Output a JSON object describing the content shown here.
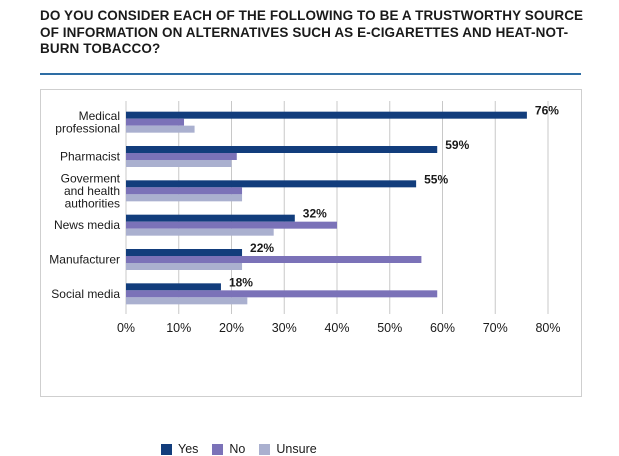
{
  "title": "DO YOU CONSIDER EACH OF THE FOLLOWING TO BE A TRUSTWORTHY SOURCE OF INFORMATION ON ALTERNATIVES SUCH AS E-CIGARETTES AND HEAT-NOT-BURN TOBACCO?",
  "colors": {
    "yes": "#123d7c",
    "no": "#7b72b8",
    "unsure": "#aab0cf",
    "rule": "#2e6da4"
  },
  "legend": {
    "yes": "Yes",
    "no": "No",
    "unsure": "Unsure"
  },
  "chart_data": {
    "type": "bar",
    "orientation": "horizontal",
    "categories": [
      [
        "Medical",
        "professional"
      ],
      [
        "Pharmacist"
      ],
      [
        "Goverment",
        "and health",
        "authorities"
      ],
      [
        "News media"
      ],
      [
        "Manufacturer"
      ],
      [
        "Social media"
      ]
    ],
    "series": [
      {
        "name": "Yes",
        "values": [
          76,
          59,
          55,
          32,
          22,
          18
        ]
      },
      {
        "name": "No",
        "values": [
          11,
          21,
          22,
          40,
          56,
          59
        ]
      },
      {
        "name": "Unsure",
        "values": [
          13,
          20,
          22,
          28,
          22,
          23
        ]
      }
    ],
    "data_labels": [
      "76%",
      "59%",
      "55%",
      "32%",
      "22%",
      "18%"
    ],
    "xlim": [
      0,
      80
    ],
    "xticks": [
      "0%",
      "10%",
      "20%",
      "30%",
      "40%",
      "50%",
      "60%",
      "70%",
      "80%"
    ],
    "grid": true,
    "legend_position": "bottom-left"
  }
}
